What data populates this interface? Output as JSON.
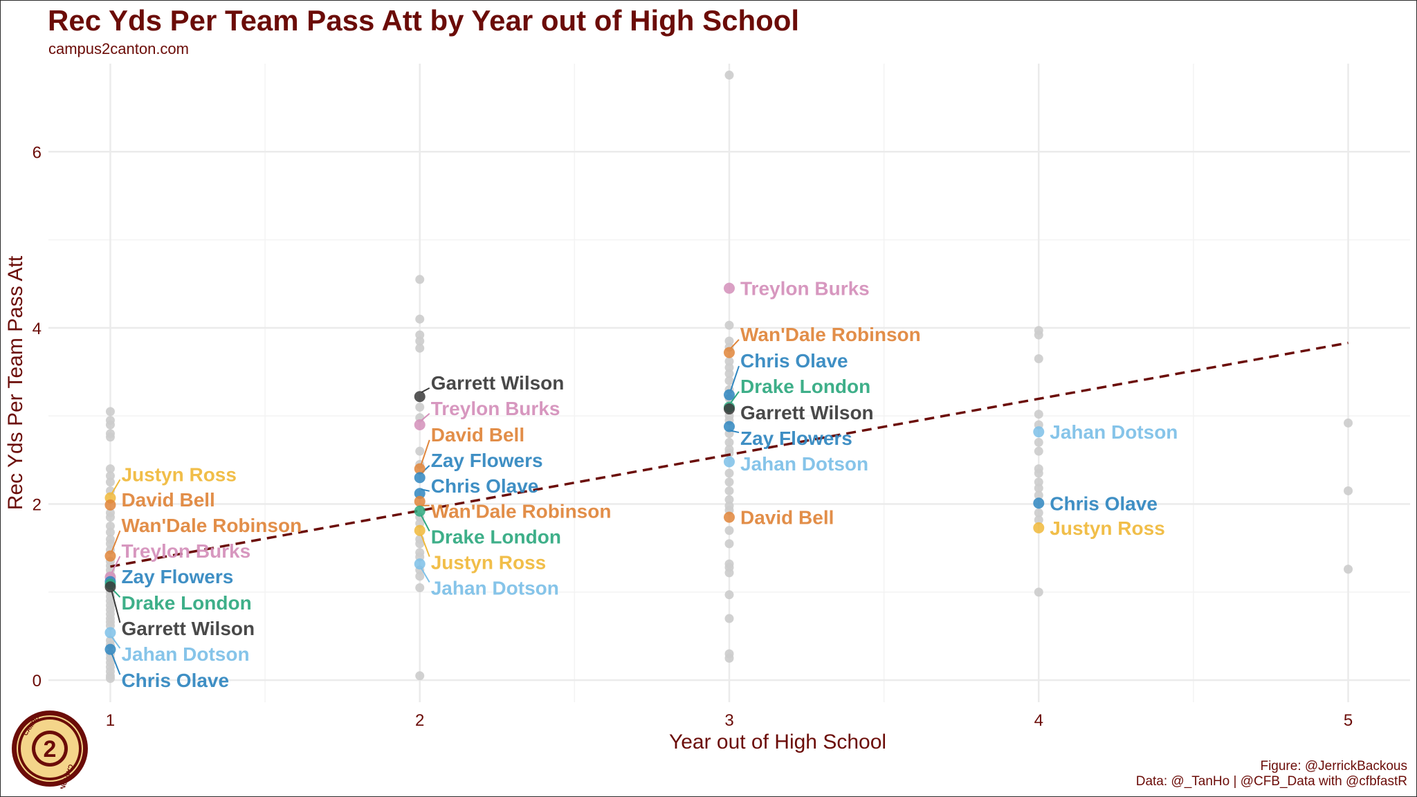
{
  "header": {
    "title": "Rec Yds Per Team Pass Att by Year out of High School",
    "subtitle": "campus2canton.com"
  },
  "footer": {
    "figure_credit": "Figure: @JerrickBackous",
    "data_credit": "Data: @_TanHo |  @CFB_Data with @cfbfastR"
  },
  "logo": {
    "icon": "campus2canton-logo-icon",
    "text_top": "CAMPUS",
    "text_bottom": "CANTON",
    "number": "2"
  },
  "colors": {
    "title": "#6b0c08",
    "trend": "#6b0c08",
    "background_point": "#cccccc",
    "grid": "#ebebeb"
  },
  "chart_data": {
    "type": "scatter",
    "title": "Rec Yds Per Team Pass Att by Year out of High School",
    "subtitle": "campus2canton.com",
    "xlabel": "Year out of High School",
    "ylabel": "Rec Yds Per Team Pass Att",
    "xlim": [
      0.8,
      5.2
    ],
    "ylim": [
      -0.25,
      7.0
    ],
    "x_ticks": [
      1,
      2,
      3,
      4,
      5
    ],
    "y_ticks": [
      0,
      2,
      4,
      6
    ],
    "grid": true,
    "trendline": {
      "style": "dashed",
      "x": [
        1,
        5
      ],
      "y": [
        1.29,
        3.83
      ]
    },
    "players": [
      {
        "name": "Garrett Wilson",
        "color": "#3a3a3a"
      },
      {
        "name": "Treylon Burks",
        "color": "#d48fba"
      },
      {
        "name": "David Bell",
        "color": "#e0853a"
      },
      {
        "name": "Zay Flowers",
        "color": "#2f86c0"
      },
      {
        "name": "Chris Olave",
        "color": "#2f86c0"
      },
      {
        "name": "Wan'Dale Robinson",
        "color": "#e0853a"
      },
      {
        "name": "Drake London",
        "color": "#2ea97f"
      },
      {
        "name": "Justyn Ross",
        "color": "#f0b93a"
      },
      {
        "name": "Jahan Dotson",
        "color": "#7cc0e8"
      }
    ],
    "highlighted": [
      {
        "player": "Justyn Ross",
        "x": 1,
        "y": 2.07,
        "label_y": 2.34
      },
      {
        "player": "David Bell",
        "x": 1,
        "y": 1.99,
        "label_y": 2.05
      },
      {
        "player": "Wan'Dale Robinson",
        "x": 1,
        "y": 1.41,
        "label_y": 1.76
      },
      {
        "player": "Treylon Burks",
        "x": 1,
        "y": 1.17,
        "label_y": 1.47
      },
      {
        "player": "Zay Flowers",
        "x": 1,
        "y": 1.12,
        "label_y": 1.18
      },
      {
        "player": "Drake London",
        "x": 1,
        "y": 1.09,
        "label_y": 0.88
      },
      {
        "player": "Garrett Wilson",
        "x": 1,
        "y": 1.06,
        "label_y": 0.59
      },
      {
        "player": "Jahan Dotson",
        "x": 1,
        "y": 0.54,
        "label_y": 0.3
      },
      {
        "player": "Chris Olave",
        "x": 1,
        "y": 0.35,
        "label_y": 0.0
      },
      {
        "player": "Garrett Wilson",
        "x": 2,
        "y": 3.22,
        "label_y": 3.38
      },
      {
        "player": "Treylon Burks",
        "x": 2,
        "y": 2.9,
        "label_y": 3.09
      },
      {
        "player": "David Bell",
        "x": 2,
        "y": 2.4,
        "label_y": 2.79
      },
      {
        "player": "Zay Flowers",
        "x": 2,
        "y": 2.3,
        "label_y": 2.5
      },
      {
        "player": "Chris Olave",
        "x": 2,
        "y": 2.12,
        "label_y": 2.21
      },
      {
        "player": "Wan'Dale Robinson",
        "x": 2,
        "y": 2.03,
        "label_y": 1.92
      },
      {
        "player": "Drake London",
        "x": 2,
        "y": 1.92,
        "label_y": 1.63
      },
      {
        "player": "Justyn Ross",
        "x": 2,
        "y": 1.7,
        "label_y": 1.34
      },
      {
        "player": "Jahan Dotson",
        "x": 2,
        "y": 1.32,
        "label_y": 1.05
      },
      {
        "player": "Treylon Burks",
        "x": 3,
        "y": 4.45,
        "label_y": 4.45
      },
      {
        "player": "Wan'Dale Robinson",
        "x": 3,
        "y": 3.72,
        "label_y": 3.93
      },
      {
        "player": "Chris Olave",
        "x": 3,
        "y": 3.24,
        "label_y": 3.63
      },
      {
        "player": "Drake London",
        "x": 3,
        "y": 3.1,
        "label_y": 3.34
      },
      {
        "player": "Garrett Wilson",
        "x": 3,
        "y": 3.08,
        "label_y": 3.04
      },
      {
        "player": "Zay Flowers",
        "x": 3,
        "y": 2.88,
        "label_y": 2.75
      },
      {
        "player": "Jahan Dotson",
        "x": 3,
        "y": 2.48,
        "label_y": 2.46
      },
      {
        "player": "David Bell",
        "x": 3,
        "y": 1.85,
        "label_y": 1.85
      },
      {
        "player": "Jahan Dotson",
        "x": 4,
        "y": 2.82,
        "label_y": 2.82
      },
      {
        "player": "Chris Olave",
        "x": 4,
        "y": 2.01,
        "label_y": 2.01
      },
      {
        "player": "Justyn Ross",
        "x": 4,
        "y": 1.73,
        "label_y": 1.73
      }
    ],
    "others": [
      {
        "x": 1,
        "y": [
          3.05,
          2.95,
          2.9,
          2.8,
          2.76,
          2.4,
          2.32,
          2.25,
          2.15,
          1.9,
          1.85,
          1.75,
          1.68,
          1.6,
          1.55,
          1.48,
          1.35,
          1.3,
          1.25,
          1.2,
          1.0,
          0.95,
          0.9,
          0.85,
          0.8,
          0.75,
          0.7,
          0.66,
          0.62,
          0.45,
          0.4,
          0.3,
          0.25,
          0.2,
          0.15,
          0.1,
          0.05,
          0.02
        ]
      },
      {
        "x": 2,
        "y": [
          4.55,
          4.1,
          3.92,
          3.85,
          3.77,
          3.1,
          2.98,
          2.6,
          2.45,
          1.85,
          1.78,
          1.6,
          1.55,
          1.45,
          1.4,
          1.25,
          1.18,
          1.05,
          0.05
        ]
      },
      {
        "x": 3,
        "y": [
          6.87,
          4.03,
          3.85,
          3.78,
          3.62,
          3.55,
          3.48,
          3.4,
          3.3,
          3.2,
          3.0,
          2.95,
          2.8,
          2.7,
          2.62,
          2.58,
          2.35,
          2.25,
          2.15,
          2.05,
          1.98,
          1.93,
          1.7,
          1.55,
          1.32,
          1.28,
          1.22,
          0.97,
          0.7,
          0.3,
          0.25
        ]
      },
      {
        "x": 4,
        "y": [
          3.97,
          3.92,
          3.65,
          3.02,
          2.9,
          2.7,
          2.6,
          2.4,
          2.35,
          2.25,
          2.18,
          2.1,
          1.9,
          1.82,
          1.0
        ]
      },
      {
        "x": 5,
        "y": [
          2.92,
          2.15,
          1.26
        ]
      }
    ]
  }
}
